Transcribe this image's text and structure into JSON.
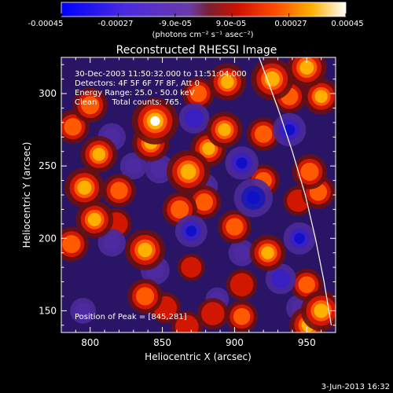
{
  "colorbar": {
    "ticks": [
      "-0.00045",
      "-0.00027",
      "-9.0e-05",
      "9.0e-05",
      "0.00027",
      "0.00045"
    ],
    "unit": "(photons cm⁻² s⁻¹ asec⁻²)",
    "colors": [
      "#0000ff",
      "#5a2ad8",
      "#6a3aa8",
      "#7a2020",
      "#ff2a00",
      "#ff9a00",
      "#ffffff"
    ]
  },
  "chart_data": {
    "type": "heatmap",
    "title": "Reconstructed RHESSI Image",
    "xlabel": "Heliocentric X (arcsec)",
    "ylabel": "Heliocentric Y (arcsec)",
    "xlim": [
      780,
      970
    ],
    "ylim": [
      135,
      325
    ],
    "x_ticks": [
      800,
      850,
      900,
      950
    ],
    "y_ticks": [
      150,
      200,
      250,
      300
    ],
    "value_range": [
      -0.00045,
      0.00045
    ],
    "peak": [
      845,
      281
    ],
    "annotations": [
      "30-Dec-2003 11:50:32.000 to 11:51:04.000",
      "Detectors: 4F 5F 6F 7F 8F, Att 0",
      "Energy Range: 25.0 - 50.0 keV",
      "Clean      Total counts: 765.",
      "Position of Peak = [845,281]"
    ],
    "limb_arc": [
      [
        917,
        325
      ],
      [
        930,
        290
      ],
      [
        940,
        260
      ],
      [
        949,
        230
      ],
      [
        956,
        200
      ],
      [
        962,
        170
      ],
      [
        967,
        140
      ]
    ],
    "sources": [
      {
        "x": 845,
        "y": 281,
        "v": 0.00045
      },
      {
        "x": 842,
        "y": 266,
        "v": 0.0003
      },
      {
        "x": 800,
        "y": 292,
        "v": 0.00026
      },
      {
        "x": 788,
        "y": 277,
        "v": 0.00024
      },
      {
        "x": 806,
        "y": 258,
        "v": 0.00029
      },
      {
        "x": 796,
        "y": 235,
        "v": 0.00034
      },
      {
        "x": 820,
        "y": 233,
        "v": 0.00024
      },
      {
        "x": 803,
        "y": 213,
        "v": 0.0003
      },
      {
        "x": 818,
        "y": 210,
        "v": 0.0002
      },
      {
        "x": 787,
        "y": 196,
        "v": 0.00026
      },
      {
        "x": 838,
        "y": 192,
        "v": 0.00035
      },
      {
        "x": 838,
        "y": 160,
        "v": 0.00026
      },
      {
        "x": 852,
        "y": 152,
        "v": 0.0002
      },
      {
        "x": 868,
        "y": 246,
        "v": 0.0004
      },
      {
        "x": 882,
        "y": 262,
        "v": 0.00028
      },
      {
        "x": 862,
        "y": 220,
        "v": 0.00026
      },
      {
        "x": 879,
        "y": 225,
        "v": 0.00024
      },
      {
        "x": 875,
        "y": 300,
        "v": 0.00022
      },
      {
        "x": 893,
        "y": 275,
        "v": 0.00028
      },
      {
        "x": 895,
        "y": 308,
        "v": 0.0003
      },
      {
        "x": 926,
        "y": 310,
        "v": 0.00038
      },
      {
        "x": 950,
        "y": 318,
        "v": 0.00034
      },
      {
        "x": 960,
        "y": 298,
        "v": 0.00028
      },
      {
        "x": 938,
        "y": 298,
        "v": 0.00024
      },
      {
        "x": 920,
        "y": 272,
        "v": 0.00024
      },
      {
        "x": 920,
        "y": 240,
        "v": 0.00022
      },
      {
        "x": 952,
        "y": 246,
        "v": 0.00026
      },
      {
        "x": 958,
        "y": 232,
        "v": 0.00024
      },
      {
        "x": 900,
        "y": 208,
        "v": 0.00024
      },
      {
        "x": 944,
        "y": 226,
        "v": 0.00018
      },
      {
        "x": 923,
        "y": 190,
        "v": 0.00028
      },
      {
        "x": 950,
        "y": 168,
        "v": 0.00022
      },
      {
        "x": 960,
        "y": 150,
        "v": 0.00035
      },
      {
        "x": 951,
        "y": 140,
        "v": 0.0003
      },
      {
        "x": 867,
        "y": 139,
        "v": 0.0002
      },
      {
        "x": 885,
        "y": 148,
        "v": 0.0002
      },
      {
        "x": 905,
        "y": 146,
        "v": 0.00022
      },
      {
        "x": 905,
        "y": 168,
        "v": 0.0002
      },
      {
        "x": 870,
        "y": 180,
        "v": 0.00014
      },
      {
        "x": 888,
        "y": 158,
        "v": -0.00012
      },
      {
        "x": 872,
        "y": 283,
        "v": -0.00025
      },
      {
        "x": 905,
        "y": 252,
        "v": -0.0003
      },
      {
        "x": 848,
        "y": 248,
        "v": -0.00022
      },
      {
        "x": 830,
        "y": 250,
        "v": -0.00018
      },
      {
        "x": 815,
        "y": 197,
        "v": -0.0002
      },
      {
        "x": 870,
        "y": 205,
        "v": -0.00028
      },
      {
        "x": 845,
        "y": 178,
        "v": -0.00022
      },
      {
        "x": 913,
        "y": 228,
        "v": -0.0004
      },
      {
        "x": 938,
        "y": 275,
        "v": -0.0003
      },
      {
        "x": 945,
        "y": 200,
        "v": -0.00028
      },
      {
        "x": 932,
        "y": 172,
        "v": -0.00025
      },
      {
        "x": 905,
        "y": 190,
        "v": -0.00018
      },
      {
        "x": 815,
        "y": 270,
        "v": -0.0002
      },
      {
        "x": 795,
        "y": 150,
        "v": -0.00016
      },
      {
        "x": 880,
        "y": 236,
        "v": -0.00014
      },
      {
        "x": 945,
        "y": 152,
        "v": -0.00018
      }
    ]
  },
  "footer": {
    "date": "3-Jun-2013 16:32"
  }
}
